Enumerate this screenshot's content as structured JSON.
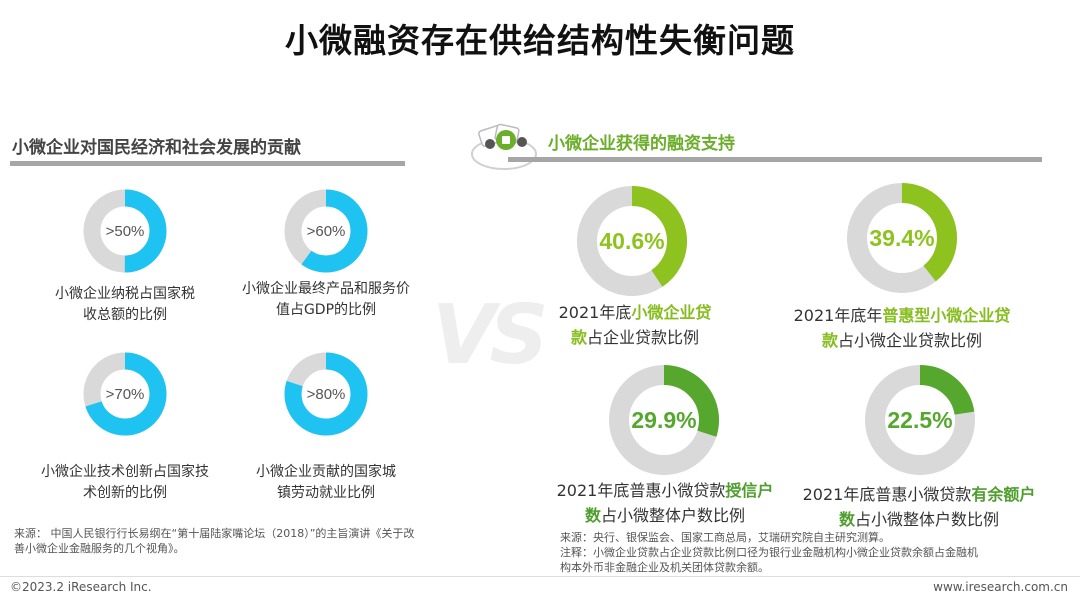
{
  "page_title": "小微融资存在供给结构性失衡问题",
  "left_section": {
    "title": "小微企业对国民经济和社会发展的贡献",
    "items": [
      {
        "value_label": ">50%",
        "share": 0.5,
        "label_line1": "小微企业纳税占国家税",
        "label_line2": "收总额的比例"
      },
      {
        "value_label": ">60%",
        "share": 0.6,
        "label_line1": "小微企业最终产品和服务价",
        "label_line2": "值占GDP的比例"
      },
      {
        "value_label": ">70%",
        "share": 0.7,
        "label_line1": "小微企业技术创新占国家技",
        "label_line2": "术创新的比例"
      },
      {
        "value_label": ">80%",
        "share": 0.8,
        "label_line1": "小微企业贡献的国家城",
        "label_line2": "镇劳动就业比例"
      }
    ],
    "source_line1": "来源： 中国人民银行行长易纲在“第十届陆家嘴论坛（2018）”的主旨演讲《关于改",
    "source_line2": "善小微企业金融服务的几个视角》。"
  },
  "vs_text": "VS",
  "right_section": {
    "title": "小微企业获得的融资支持",
    "items": [
      {
        "value_label": "40.6%",
        "share": 0.406,
        "pre": "2021年底",
        "hl": "小微企业贷",
        "hl2": "款",
        "post": "占企业贷款比例"
      },
      {
        "value_label": "39.4%",
        "share": 0.394,
        "pre": "2021年底年",
        "hl": "普惠型小微企业贷",
        "hl2": "款",
        "post": "占小微企业贷款比例"
      },
      {
        "value_label": "29.9%",
        "share": 0.299,
        "pre": "2021年底普惠小微贷款",
        "hl": "授信户",
        "hl2": "数",
        "post": "占小微整体户数比例"
      },
      {
        "value_label": "22.5%",
        "share": 0.225,
        "pre": "2021年底普惠小微贷款",
        "hl": "有余额户",
        "hl2": "数",
        "post": "占小微整体户数比例"
      }
    ],
    "source_line1": "来源：央行、银保监会、国家工商总局，艾瑞研究院自主研究测算。",
    "note_line1": "注释：小微企业贷款占企业贷款比例口径为银行业金融机构小微企业贷款余额占金融机",
    "note_line2": "构本外币非金融企业及机关团体贷款余额。"
  },
  "footer": {
    "copyright": "©2023.2 iResearch Inc.",
    "website": "www.iresearch.com.cn"
  },
  "colors": {
    "cyan": "#1fc3f1",
    "light_green": "#8ec31f",
    "dark_green": "#55a72e",
    "track": "#d9d9d9"
  },
  "chart_data": [
    {
      "type": "pie",
      "categories": [
        "小微企业纳税占国家税收总额的比例"
      ],
      "values": [
        50
      ],
      "value_labels": [
        ">50%"
      ]
    },
    {
      "type": "pie",
      "categories": [
        "小微企业最终产品和服务价值占GDP的比例"
      ],
      "values": [
        60
      ],
      "value_labels": [
        ">60%"
      ]
    },
    {
      "type": "pie",
      "categories": [
        "小微企业技术创新占国家技术创新的比例"
      ],
      "values": [
        70
      ],
      "value_labels": [
        ">70%"
      ]
    },
    {
      "type": "pie",
      "categories": [
        "小微企业贡献的国家城镇劳动就业比例"
      ],
      "values": [
        80
      ],
      "value_labels": [
        ">80%"
      ]
    },
    {
      "type": "pie",
      "categories": [
        "2021年底小微企业贷款占企业贷款比例"
      ],
      "values": [
        40.6
      ],
      "value_labels": [
        "40.6%"
      ]
    },
    {
      "type": "pie",
      "categories": [
        "2021年底年普惠型小微企业贷款占小微企业贷款比例"
      ],
      "values": [
        39.4
      ],
      "value_labels": [
        "39.4%"
      ]
    },
    {
      "type": "pie",
      "categories": [
        "2021年底普惠小微贷款授信户数占小微整体户数比例"
      ],
      "values": [
        29.9
      ],
      "value_labels": [
        "29.9%"
      ]
    },
    {
      "type": "pie",
      "categories": [
        "2021年底普惠小微贷款有余额户数占小微整体户数比例"
      ],
      "values": [
        22.5
      ],
      "value_labels": [
        "22.5%"
      ]
    }
  ]
}
